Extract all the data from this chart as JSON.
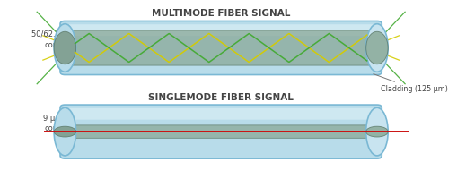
{
  "title_multimode": "MULTIMODE FIBER SIGNAL",
  "title_singlemode": "SINGLEMODE FIBER SIGNAL",
  "label_multimode_core": "50/62.5 μm\ncore",
  "label_singlemode_core": "9 μm\ncore",
  "label_cladding": "Cladding (125 μm)",
  "fiber_color": "#b8dcea",
  "fiber_color2": "#d8eef5",
  "fiber_edge_color": "#7ab8d4",
  "core_color": "#8aa898",
  "core_edge_color": "#5a7868",
  "bg_color": "#ffffff",
  "text_color": "#444444",
  "yellow_color": "#d4cc00",
  "green_color": "#44aa33",
  "red_color": "#cc1111",
  "title_fontsize": 7.5,
  "label_fontsize": 6.0,
  "annot_fontsize": 5.8
}
